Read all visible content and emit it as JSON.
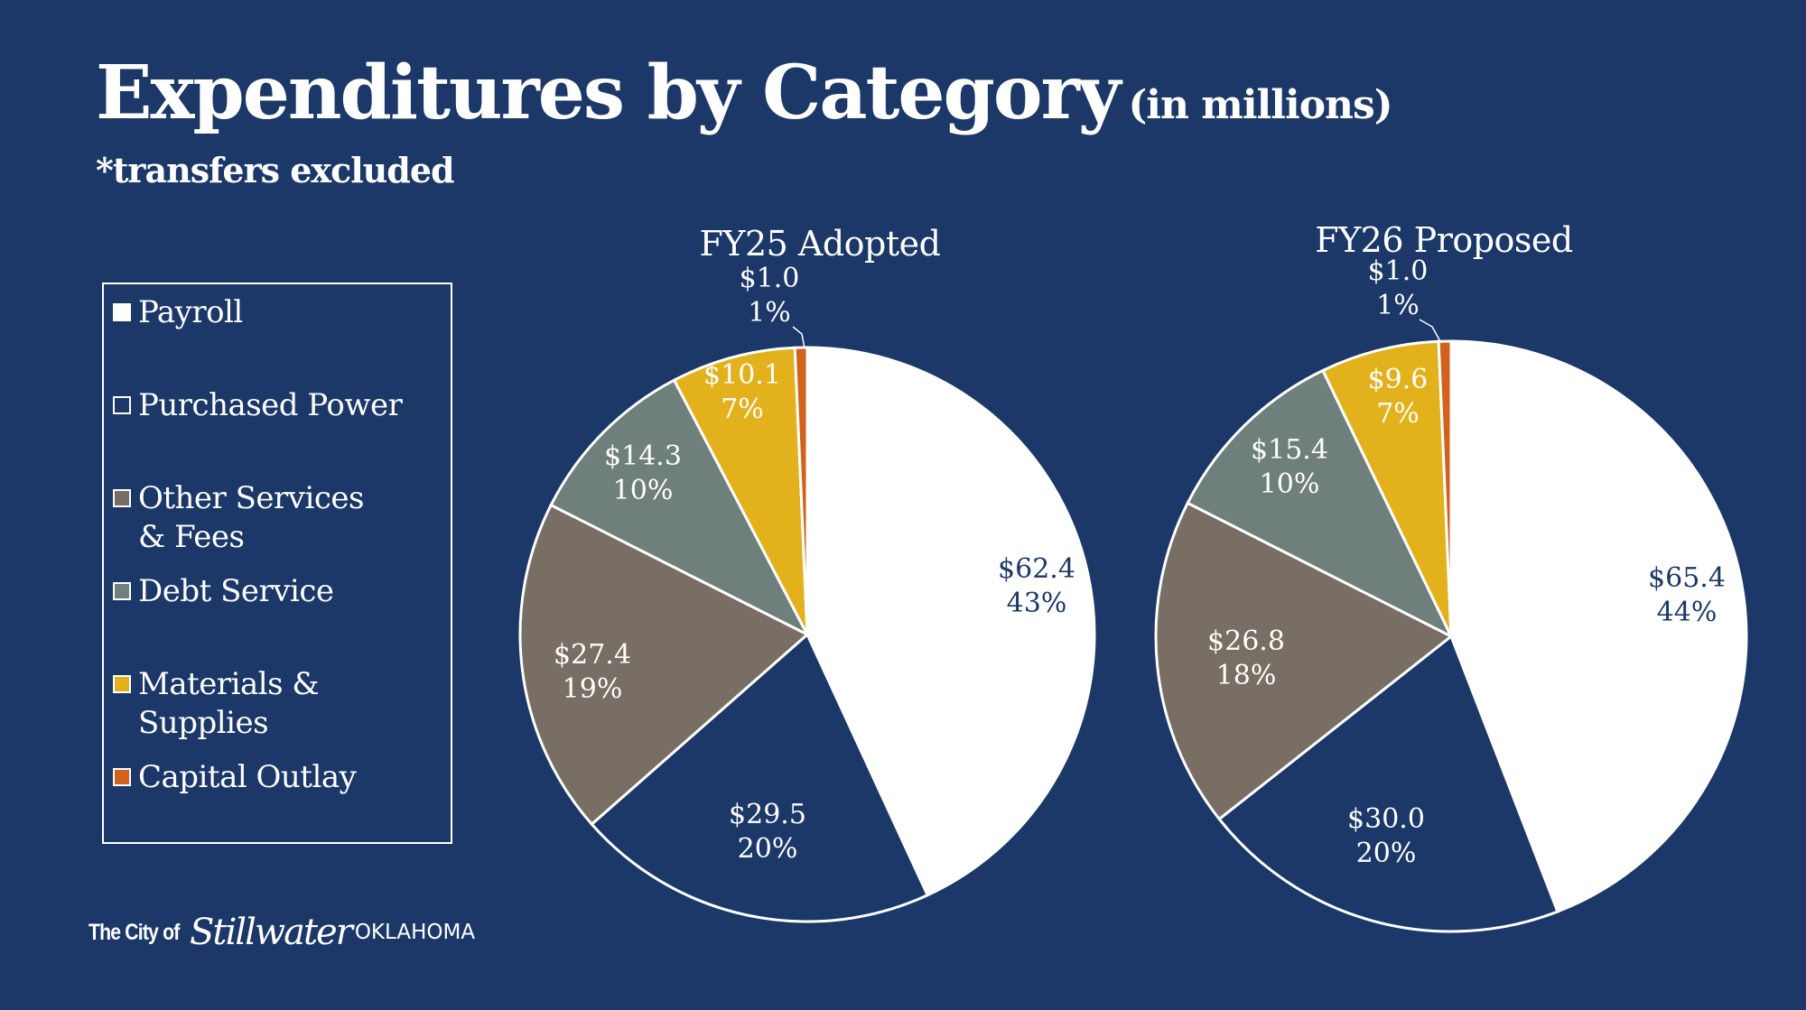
{
  "slide": {
    "title": "Expenditures by Category",
    "title_suffix": "(in millions)",
    "note": "*transfers excluded",
    "logo": {
      "prefix": "The City of",
      "script_name": "Stillwater",
      "suffix": "OKLAHOMA"
    },
    "colors": {
      "background": "#1b3868"
    }
  },
  "legend": {
    "items": [
      {
        "label": "Payroll",
        "color": "#ffffff"
      },
      {
        "label": "Purchased Power",
        "color": "#1b3868"
      },
      {
        "label": "Other Services & Fees",
        "color": "#786e63"
      },
      {
        "label": "Debt Service",
        "color": "#6f807c"
      },
      {
        "label": "Materials & Supplies",
        "color": "#e3b11c"
      },
      {
        "label": "Capital Outlay",
        "color": "#d0621b"
      }
    ]
  },
  "chart_data": [
    {
      "type": "pie",
      "title": "FY25 Adopted",
      "categories": [
        "Payroll",
        "Purchased Power",
        "Other Services & Fees",
        "Debt Service",
        "Materials & Supplies",
        "Capital Outlay"
      ],
      "values": [
        62.4,
        29.5,
        27.4,
        14.3,
        10.1,
        1.0
      ],
      "value_labels": [
        "$62.4",
        "$29.5",
        "$27.4",
        "$14.3",
        "$10.1",
        "$1.0"
      ],
      "percent_labels": [
        "43%",
        "20%",
        "19%",
        "10%",
        "7%",
        "1%"
      ],
      "colors": [
        "#ffffff",
        "#1b3868",
        "#786e63",
        "#6f807c",
        "#e3b11c",
        "#d0621b"
      ],
      "start_angle": "12 o'clock",
      "direction": "clockwise",
      "legend": "left"
    },
    {
      "type": "pie",
      "title": "FY26 Proposed",
      "categories": [
        "Payroll",
        "Purchased Power",
        "Other Services & Fees",
        "Debt Service",
        "Materials & Supplies",
        "Capital Outlay"
      ],
      "values": [
        65.4,
        30.0,
        26.8,
        15.4,
        9.6,
        1.0
      ],
      "value_labels": [
        "$65.4",
        "$30.0",
        "$26.8",
        "$15.4",
        "$9.6",
        "$1.0"
      ],
      "percent_labels": [
        "44%",
        "20%",
        "18%",
        "10%",
        "7%",
        "1%"
      ],
      "colors": [
        "#ffffff",
        "#1b3868",
        "#786e63",
        "#6f807c",
        "#e3b11c",
        "#d0621b"
      ],
      "start_angle": "12 o'clock",
      "direction": "clockwise",
      "legend": "left"
    }
  ]
}
